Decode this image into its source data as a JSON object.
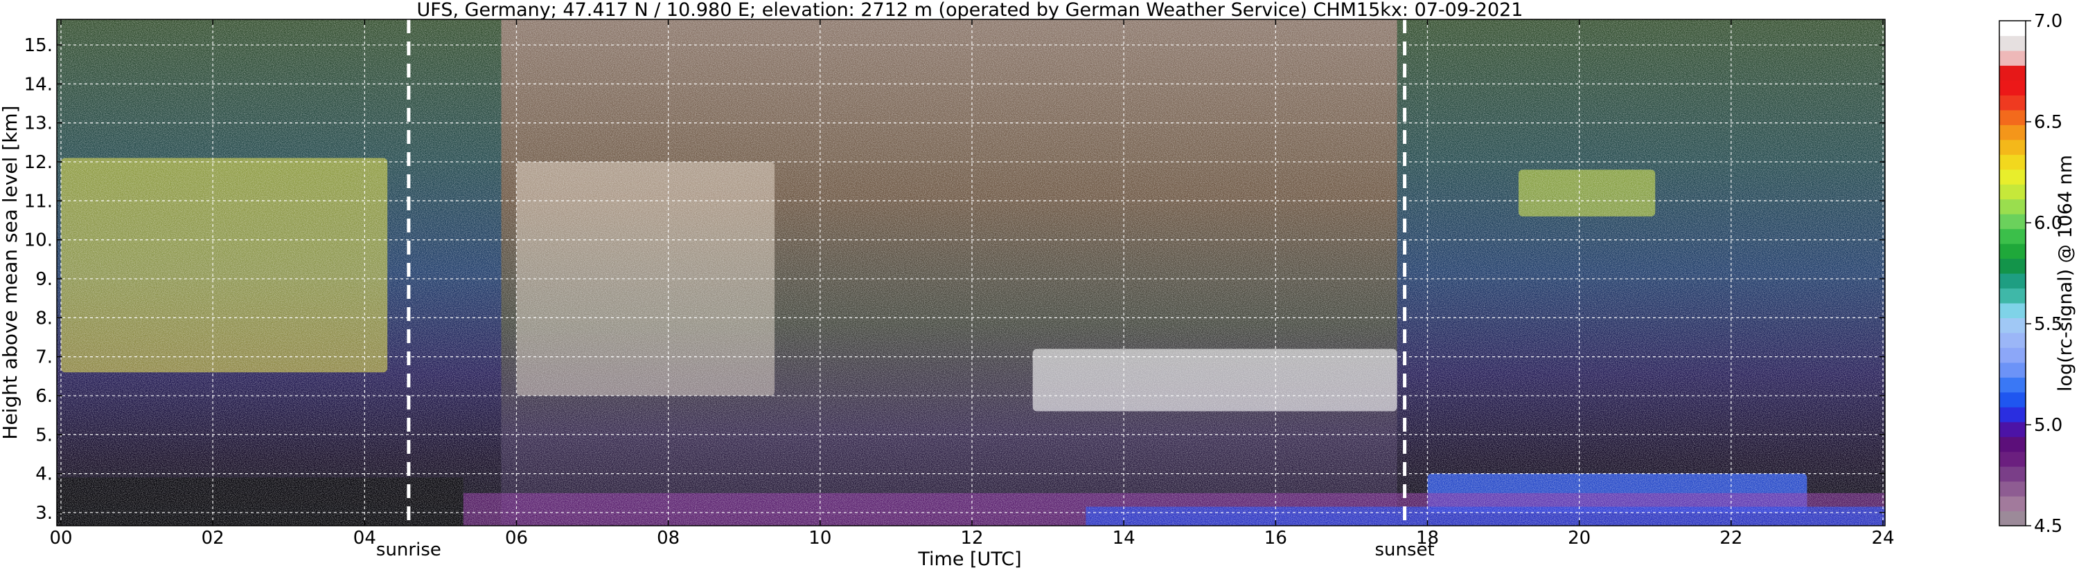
{
  "chart_data": {
    "type": "heatmap",
    "title": "UFS, Germany; 47.417 N / 10.980 E; elevation: 2712 m  (operated by German Weather Service)     CHM15kx: 07-09-2021",
    "xlabel": "Time [UTC]",
    "ylabel": "Height above mean sea level [km]",
    "xlim": [
      0,
      24
    ],
    "ylim": [
      2.8,
      15.8
    ],
    "x_ticks": [
      "00",
      "02",
      "04",
      "06",
      "08",
      "10",
      "12",
      "14",
      "16",
      "18",
      "20",
      "22",
      "24"
    ],
    "y_ticks": [
      "3.",
      "4.",
      "5.",
      "6.",
      "7.",
      "8.",
      "9.",
      "10.",
      "11.",
      "12.",
      "13.",
      "14.",
      "15."
    ],
    "grid": true,
    "events": [
      {
        "label": "sunrise",
        "x": 4.58
      },
      {
        "label": "sunset",
        "x": 17.7
      }
    ],
    "colorbar": {
      "label": "log(rc-signal) @ 1064 nm",
      "range": [
        4.5,
        7.0
      ],
      "ticks": [
        "4.5",
        "5.0",
        "5.5",
        "6.0",
        "6.5",
        "7.0"
      ],
      "colors": [
        "#9c8a99",
        "#a27a9c",
        "#8e5c92",
        "#7a3e88",
        "#6b1f7f",
        "#5c0f7a",
        "#4c13a6",
        "#2a2ee0",
        "#1f56f0",
        "#3a78f5",
        "#6c93f7",
        "#8ca7f8",
        "#9bb6f7",
        "#a0c8f5",
        "#7fd3e8",
        "#3fb8a8",
        "#1e9e82",
        "#13944a",
        "#1fa83a",
        "#3bbf4a",
        "#6bd15c",
        "#9ade4e",
        "#c6e83a",
        "#e8ee2c",
        "#f2d81e",
        "#f4b81a",
        "#f4961a",
        "#f36a1c",
        "#ef3a20",
        "#ec1818",
        "#e61818",
        "#eeb8b8",
        "#e6e0e0",
        "#ffffff"
      ]
    },
    "features": [
      {
        "t0": 0.0,
        "t1": 4.3,
        "h0": 6.6,
        "h1": 12.1
      },
      {
        "t0": 6.0,
        "t1": 9.4,
        "h0": 6.0,
        "h1": 12.0
      },
      {
        "t0": 12.8,
        "t1": 17.6,
        "h0": 5.6,
        "h1": 7.2
      },
      {
        "t0": 18.0,
        "t1": 23.0,
        "h0": 3.0,
        "h1": 4.0
      },
      {
        "t0": 19.2,
        "t1": 21.0,
        "h0": 10.6,
        "h1": 11.8
      }
    ]
  }
}
